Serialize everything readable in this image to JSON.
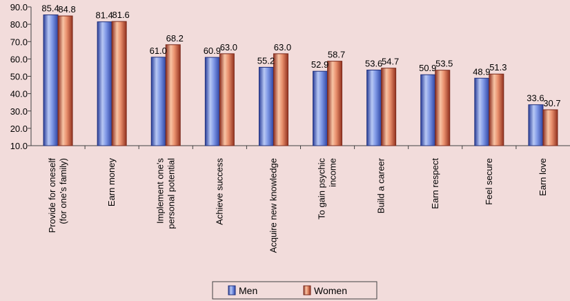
{
  "chart_data": {
    "type": "bar",
    "title": "",
    "xlabel": "",
    "ylabel": "",
    "ylim": [
      10,
      90
    ],
    "yticks": [
      "10.0",
      "20.0",
      "30.0",
      "40.0",
      "50.0",
      "60.0",
      "70.0",
      "80.0",
      "90.0"
    ],
    "grid": false,
    "legend_position": "bottom",
    "categories": [
      [
        "Provide for oneself",
        "(for one's family)"
      ],
      [
        "Earn money"
      ],
      [
        "Implement one's",
        "personal potential"
      ],
      [
        "Achieve success"
      ],
      [
        "Acquire new knowledge"
      ],
      [
        "To gain psychic",
        "income"
      ],
      [
        "Build a career"
      ],
      [
        "Earn respect"
      ],
      [
        "Feel secure"
      ],
      [
        "Earn love"
      ]
    ],
    "series": [
      {
        "name": "Men",
        "color": "#4f6fd6",
        "values": [
          85.4,
          81.4,
          61.0,
          60.9,
          55.2,
          52.9,
          53.6,
          50.9,
          48.9,
          33.6
        ],
        "labels": [
          "85.4",
          "81.4",
          "61.0",
          "60.9",
          "55.2",
          "52.9",
          "53.6",
          "50.9",
          "48.9",
          "33.6"
        ]
      },
      {
        "name": "Women",
        "color": "#c0504d",
        "values": [
          84.8,
          81.6,
          68.2,
          63.0,
          63.0,
          58.7,
          54.7,
          53.5,
          51.3,
          30.7
        ],
        "labels": [
          "84.8",
          "81.6",
          "68.2",
          "63.0",
          "63.0",
          "58.7",
          "54.7",
          "53.5",
          "51.3",
          "30.7"
        ]
      }
    ]
  }
}
